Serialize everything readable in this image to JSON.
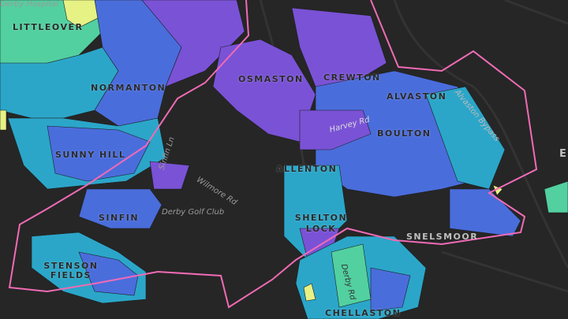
{
  "places": [
    "LITTLEOVER",
    "NORMANTON",
    "SUNNY HILL",
    "SINFIN",
    "STENSON FIELDS",
    "OSMASTON",
    "CREWTON",
    "ALVASTON",
    "BOULTON",
    "ALLENTON",
    "SHELTON LOCK",
    "SNELSMOOR",
    "CHELLASTON",
    "EL"
  ],
  "roads": [
    "Derby Hospital",
    "Harvey Rd",
    "Derby Golf Club",
    "Wilmore Rd",
    "Sinfin Ln",
    "Alvaston Bypass",
    "Derby Rd"
  ],
  "colors": {
    "background": "#262626",
    "boundary": "#f06bb5",
    "purple": "#7a52d6",
    "blue": "#4a6ddc",
    "teal": "#2ba6c9",
    "green": "#52d0a0",
    "yellow": "#e6f284"
  }
}
